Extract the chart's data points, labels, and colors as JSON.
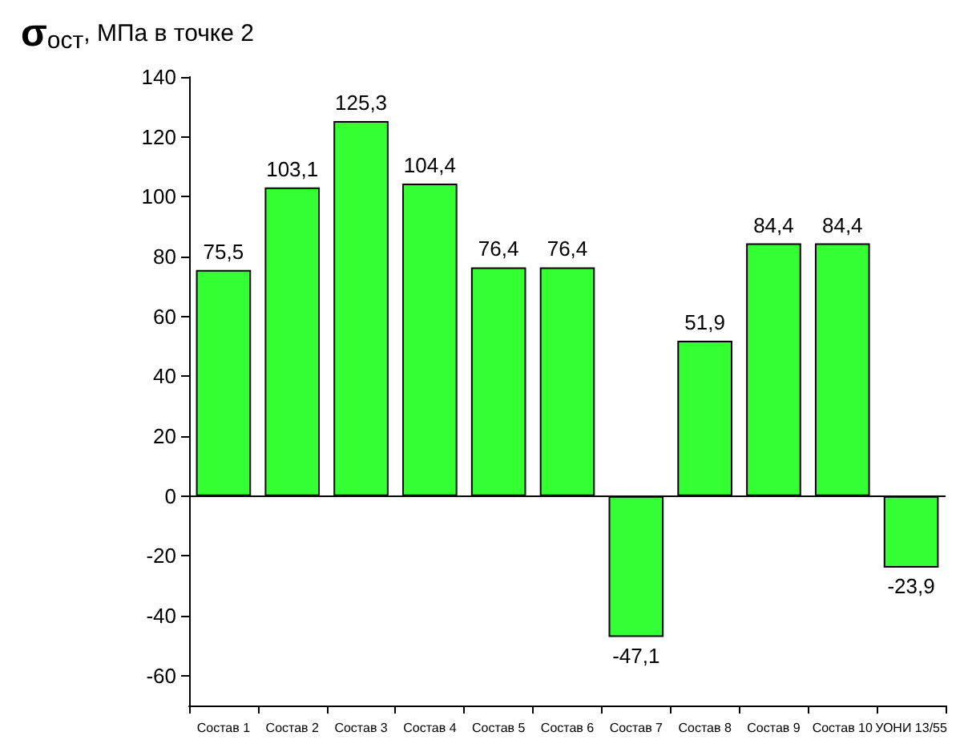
{
  "chart_data": {
    "type": "bar",
    "title": "σ$_{ост}$, МПа в точке 2",
    "categories": [
      "Состав 1",
      "Состав 2",
      "Состав 3",
      "Состав 4",
      "Состав 5",
      "Состав 6",
      "Состав 7",
      "Состав 8",
      "Состав 9",
      "Состав 10",
      "УОНИ 13/55"
    ],
    "values": [
      75.5,
      103.1,
      125.3,
      104.4,
      76.4,
      76.4,
      -47.1,
      51.9,
      84.4,
      84.4,
      -23.9
    ],
    "value_labels": [
      "75,5",
      "103,1",
      "125,3",
      "104,4",
      "76,4",
      "76,4",
      "-47,1",
      "51,9",
      "84,4",
      "84,4",
      "-23,9"
    ],
    "color": "#33ff33",
    "ylim": [
      -70,
      140
    ],
    "yticks": [
      -60,
      -40,
      -20,
      0,
      20,
      40,
      60,
      80,
      100,
      120,
      140
    ],
    "ref_lines": [
      {
        "axis": "y",
        "value": 0,
        "color": "#000000"
      }
    ],
    "grid": false
  }
}
